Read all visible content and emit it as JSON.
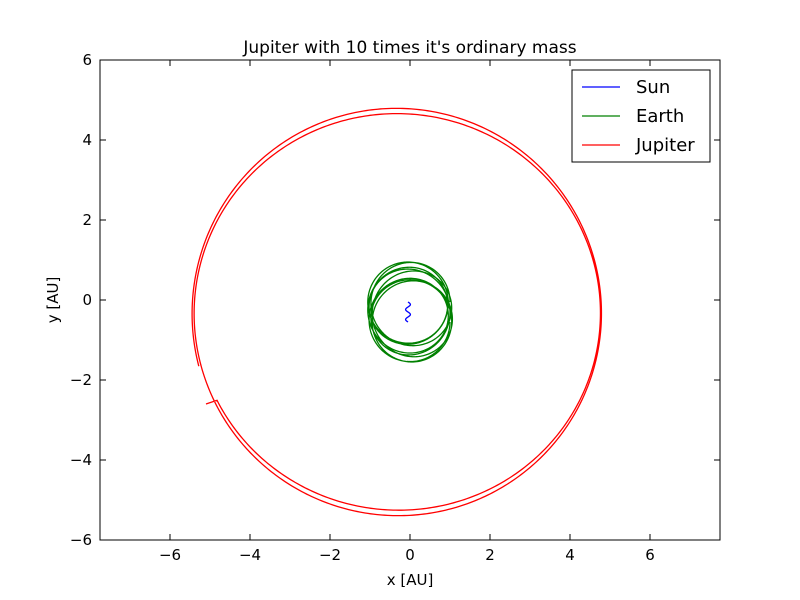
{
  "chart_data": {
    "type": "line",
    "title": "Jupiter with 10 times it's ordinary mass",
    "xlabel": "x [AU]",
    "ylabel": "y [AU]",
    "xlim": [
      -7.75,
      7.75
    ],
    "ylim": [
      -6,
      6
    ],
    "xticks": [
      -6,
      -4,
      -2,
      0,
      2,
      4,
      6
    ],
    "yticks": [
      -6,
      -4,
      -2,
      0,
      2,
      4,
      6
    ],
    "xtick_labels": [
      "−6",
      "−4",
      "−2",
      "0",
      "2",
      "4",
      "6"
    ],
    "ytick_labels": [
      "−6",
      "−4",
      "−2",
      "0",
      "2",
      "4",
      "6"
    ],
    "grid": false,
    "legend_position": "top-right",
    "series": [
      {
        "name": "Sun",
        "color": "#0000ff",
        "shape": "wobble",
        "x_center": -0.05,
        "y_range": [
          -0.55,
          -0.05
        ],
        "x_amplitude": 0.06,
        "turns": 2
      },
      {
        "name": "Earth",
        "color": "#008000",
        "shape": "drifting-orbits",
        "x_start": -1.0,
        "x_end": 0.95,
        "x_center": 0.0,
        "y_center_start": -0.05,
        "y_center_end": -0.55,
        "radius_x": 1.0,
        "radius_y": 1.0,
        "turns": 8
      },
      {
        "name": "Jupiter",
        "color": "#ff0000",
        "shape": "spiral-orbit",
        "x_range": [
          -5.45,
          4.8
        ],
        "outer_loop": {
          "x_min": -5.45,
          "x_max": 4.8,
          "y_min": -5.5,
          "y_max": 4.83
        },
        "inner_loop": {
          "x_min": -5.35,
          "x_max": 4.75,
          "y_min": -5.23,
          "y_max": 4.57
        },
        "start_point": [
          -5.1,
          -2.6
        ],
        "turns": 2
      }
    ]
  }
}
